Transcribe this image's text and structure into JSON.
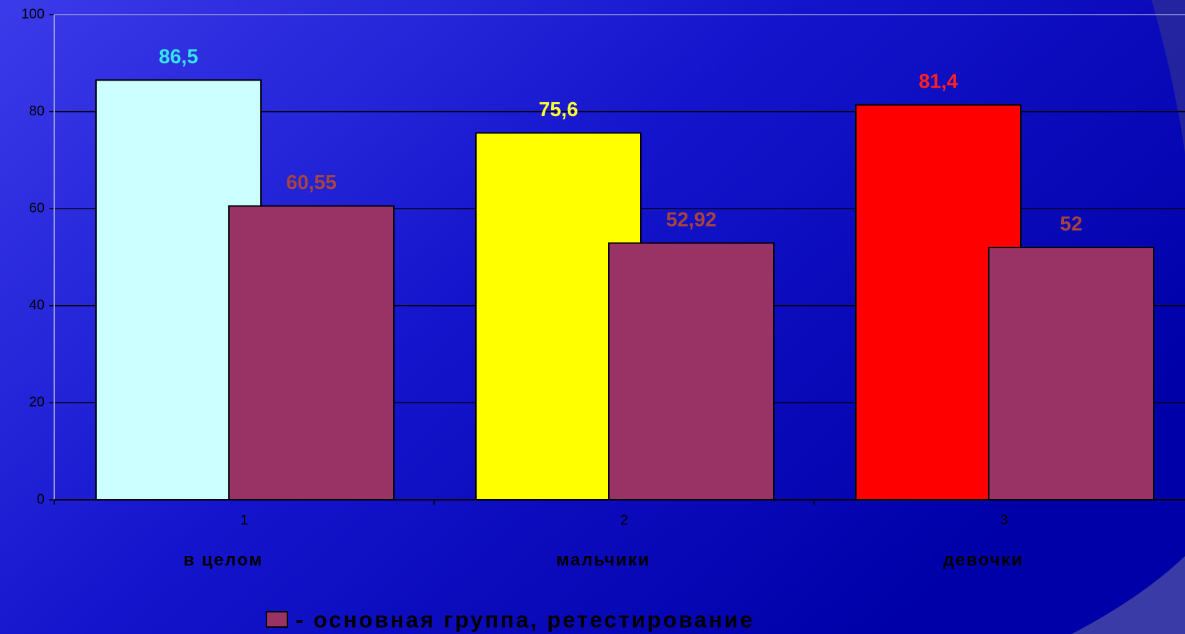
{
  "chart_data": {
    "type": "bar",
    "categories": [
      "1",
      "2",
      "3"
    ],
    "group_labels": [
      "в целом",
      "мальчики",
      "девочки"
    ],
    "series": [
      {
        "colors": [
          "#ccffff",
          "#ffff00",
          "#ff0000"
        ],
        "label_colors": [
          "#33e6e6",
          "#ffff33",
          "#ff2020"
        ],
        "values": [
          86.5,
          75.6,
          81.4
        ],
        "value_labels": [
          "86,5",
          "75,6",
          "81,4"
        ]
      },
      {
        "name": "- основная группа, ретестирование",
        "color": "#993366",
        "label_color": "#a8443c",
        "values": [
          60.55,
          52.92,
          52
        ],
        "value_labels": [
          "60,55",
          "52,92",
          "52"
        ]
      }
    ],
    "ylim": [
      0,
      100
    ],
    "yticks": [
      0,
      20,
      40,
      60,
      80,
      100
    ],
    "grid": true
  }
}
